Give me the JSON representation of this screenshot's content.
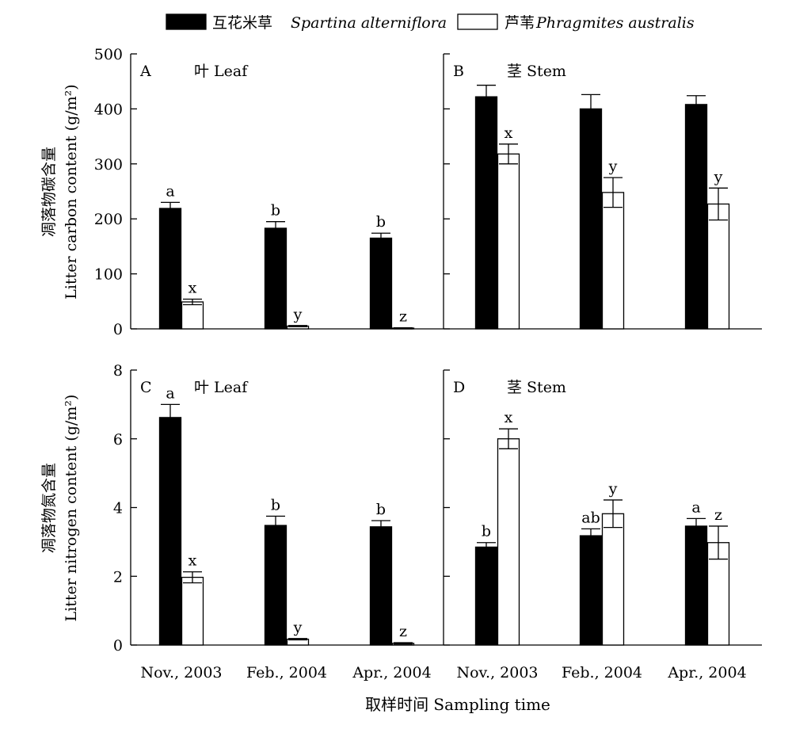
{
  "legend": {
    "items": [
      {
        "label_cn": "互花米草",
        "label_latin": "Spartina alterniflora",
        "fill": "#000000"
      },
      {
        "label_cn": "芦苇",
        "label_latin": "Phragmites australis",
        "fill": "#ffffff"
      }
    ]
  },
  "x_title": "取样时间  Sampling time",
  "rows": [
    {
      "ylabel_cn": "凋落物碳含量",
      "ylabel_en": "Litter carbon content (g/m²)"
    },
    {
      "ylabel_cn": "凋落物氮含量",
      "ylabel_en": "Litter nitrogen content (g/m²)"
    }
  ],
  "colors": {
    "spartina": "#000000",
    "phragmites": "#ffffff",
    "stroke": "#000000"
  },
  "chart_data": [
    {
      "type": "bar",
      "panel": "A",
      "title": "叶 Leaf",
      "categories": [
        "Nov., 2003",
        "Feb., 2004",
        "Apr., 2004"
      ],
      "ylim": [
        0,
        500
      ],
      "yticks": [
        0,
        100,
        200,
        300,
        400,
        500
      ],
      "series": [
        {
          "name": "互花米草 Spartina alterniflora",
          "values": [
            219,
            183,
            165
          ],
          "errors": [
            11,
            12,
            9
          ],
          "labels": [
            "a",
            "b",
            "b"
          ]
        },
        {
          "name": "芦苇 Phragmites australis",
          "values": [
            49,
            5,
            1
          ],
          "errors": [
            5,
            1,
            1
          ],
          "labels": [
            "x",
            "y",
            "z"
          ]
        }
      ]
    },
    {
      "type": "bar",
      "panel": "B",
      "title": "茎 Stem",
      "categories": [
        "Nov., 2003",
        "Feb., 2004",
        "Apr., 2004"
      ],
      "ylim": [
        0,
        500
      ],
      "yticks": [
        0,
        100,
        200,
        300,
        400,
        500
      ],
      "series": [
        {
          "name": "互花米草 Spartina alterniflora",
          "values": [
            422,
            400,
            408
          ],
          "errors": [
            21,
            26,
            16
          ],
          "labels": [
            "",
            "",
            ""
          ]
        },
        {
          "name": "芦苇 Phragmites australis",
          "values": [
            318,
            248,
            227
          ],
          "errors": [
            18,
            27,
            29
          ],
          "labels": [
            "x",
            "y",
            "y"
          ]
        }
      ]
    },
    {
      "type": "bar",
      "panel": "C",
      "title": "叶 Leaf",
      "categories": [
        "Nov., 2003",
        "Feb., 2004",
        "Apr., 2004"
      ],
      "ylim": [
        0,
        8
      ],
      "yticks": [
        0,
        2,
        4,
        6,
        8
      ],
      "series": [
        {
          "name": "互花米草 Spartina alterniflora",
          "values": [
            6.62,
            3.48,
            3.44
          ],
          "errors": [
            0.38,
            0.27,
            0.18
          ],
          "labels": [
            "a",
            "b",
            "b"
          ]
        },
        {
          "name": "芦苇 Phragmites australis",
          "values": [
            1.97,
            0.17,
            0.05
          ],
          "errors": [
            0.16,
            0.02,
            0.02
          ],
          "labels": [
            "x",
            "y",
            "z"
          ]
        }
      ]
    },
    {
      "type": "bar",
      "panel": "D",
      "title": "茎 Stem",
      "categories": [
        "Nov., 2003",
        "Feb., 2004",
        "Apr., 2004"
      ],
      "ylim": [
        0,
        8
      ],
      "yticks": [
        0,
        2,
        4,
        6,
        8
      ],
      "series": [
        {
          "name": "互花米草 Spartina alterniflora",
          "values": [
            2.85,
            3.18,
            3.46
          ],
          "errors": [
            0.13,
            0.2,
            0.22
          ],
          "labels": [
            "b",
            "ab",
            "a"
          ]
        },
        {
          "name": "芦苇 Phragmites australis",
          "values": [
            6.0,
            3.82,
            2.98
          ],
          "errors": [
            0.29,
            0.4,
            0.48
          ],
          "labels": [
            "x",
            "y",
            "z"
          ]
        }
      ]
    }
  ]
}
